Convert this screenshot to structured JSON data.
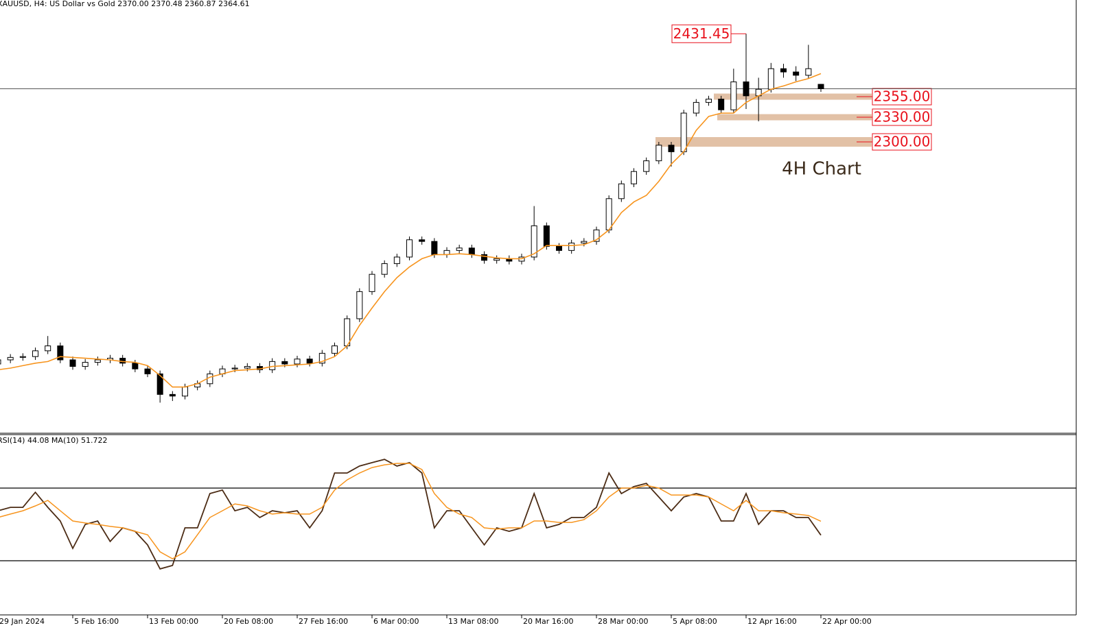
{
  "chart_data": [
    {
      "type": "candlestick",
      "title": "XAUUSD, H4:  US Dollar vs Gold  2370.00 2370.48 2360.87 2364.61",
      "annotation": "4H Chart",
      "categories": [
        "29 Jan 2024",
        null,
        null,
        null,
        null,
        null,
        "5 Feb 16:00",
        null,
        null,
        null,
        null,
        null,
        "13 Feb 00:00",
        null,
        null,
        null,
        null,
        null,
        "20 Feb 08:00",
        null,
        null,
        null,
        null,
        null,
        "27 Feb 16:00",
        null,
        null,
        null,
        null,
        null,
        "6 Mar 00:00",
        null,
        null,
        null,
        null,
        null,
        "13 Mar 08:00",
        null,
        null,
        null,
        null,
        null,
        "20 Mar 16:00",
        null,
        null,
        null,
        null,
        null,
        "28 Mar 00:00",
        null,
        null,
        null,
        null,
        null,
        "5 Apr 08:00",
        null,
        null,
        null,
        null,
        null,
        "12 Apr 16:00",
        null,
        null,
        null,
        null,
        null,
        "22 Apr 00:00"
      ],
      "open": [
        2030,
        2035,
        2038,
        2039,
        2046,
        2052,
        2035,
        2027,
        2032,
        2035,
        2037,
        2031,
        2024,
        2018,
        1993,
        1991,
        2002,
        2006,
        2018,
        2024,
        2025,
        2027,
        2023,
        2033,
        2030,
        2036,
        2031,
        2043,
        2052,
        2085,
        2118,
        2139,
        2152,
        2160,
        2181,
        2179,
        2163,
        2168,
        2171,
        2163,
        2156,
        2158,
        2155,
        2160,
        2198,
        2173,
        2168,
        2177,
        2179,
        2193,
        2231,
        2249,
        2264,
        2277,
        2296,
        2288,
        2335,
        2348,
        2352,
        2339,
        2373,
        2356,
        2364,
        2389,
        2385,
        2381,
        2370.0
      ],
      "high": [
        2039,
        2042,
        2043,
        2050,
        2064,
        2056,
        2039,
        2036,
        2039,
        2041,
        2041,
        2035,
        2028,
        2022,
        1997,
        2006,
        2010,
        2022,
        2028,
        2029,
        2031,
        2031,
        2037,
        2037,
        2040,
        2040,
        2047,
        2056,
        2089,
        2122,
        2143,
        2156,
        2164,
        2185,
        2185,
        2183,
        2172,
        2175,
        2175,
        2167,
        2162,
        2162,
        2164,
        2222,
        2202,
        2177,
        2181,
        2183,
        2197,
        2235,
        2253,
        2268,
        2281,
        2300,
        2300,
        2339,
        2352,
        2356,
        2356,
        2389,
        2431.45,
        2378,
        2396,
        2395,
        2392,
        2418,
        2370.48
      ],
      "low": [
        2026,
        2031,
        2034,
        2035,
        2042,
        2031,
        2023,
        2023,
        2028,
        2031,
        2027,
        2020,
        2014,
        1983,
        1985,
        1987,
        1998,
        2002,
        2014,
        2020,
        2021,
        2019,
        2019,
        2026,
        2026,
        2027,
        2027,
        2039,
        2048,
        2081,
        2114,
        2135,
        2148,
        2156,
        2175,
        2159,
        2159,
        2164,
        2159,
        2152,
        2152,
        2151,
        2151,
        2156,
        2169,
        2164,
        2164,
        2173,
        2175,
        2189,
        2227,
        2245,
        2260,
        2273,
        2270,
        2284,
        2331,
        2344,
        2335,
        2335,
        2340,
        2325,
        2360,
        2378,
        2374,
        2377,
        2360.87
      ],
      "close": [
        2035,
        2038,
        2039,
        2046,
        2052,
        2035,
        2027,
        2032,
        2035,
        2037,
        2031,
        2024,
        2018,
        1993,
        1991,
        2002,
        2006,
        2018,
        2024,
        2025,
        2027,
        2023,
        2033,
        2030,
        2036,
        2031,
        2043,
        2052,
        2085,
        2118,
        2139,
        2152,
        2160,
        2181,
        2179,
        2163,
        2168,
        2171,
        2163,
        2156,
        2158,
        2155,
        2160,
        2198,
        2173,
        2168,
        2177,
        2179,
        2193,
        2231,
        2249,
        2264,
        2277,
        2296,
        2288,
        2335,
        2348,
        2352,
        2339,
        2373,
        2356,
        2364,
        2389,
        2385,
        2381,
        2389,
        2364.61
      ],
      "up_color": "#ffffff",
      "down_color": "#000000",
      "ma": {
        "color": "#f7941d",
        "values": [
          2023,
          2025,
          2028,
          2031,
          2033,
          2039,
          2038,
          2037,
          2036,
          2035,
          2033,
          2032,
          2028,
          2016,
          2002,
          2002,
          2006,
          2014,
          2018,
          2022,
          2023,
          2024,
          2027,
          2028,
          2029,
          2030,
          2033,
          2039,
          2052,
          2077,
          2098,
          2118,
          2135,
          2148,
          2158,
          2163,
          2163,
          2164,
          2163,
          2161,
          2159,
          2158,
          2158,
          2164,
          2174,
          2174,
          2174,
          2175,
          2181,
          2193,
          2214,
          2227,
          2235,
          2252,
          2273,
          2288,
          2314,
          2331,
          2335,
          2335,
          2348,
          2356,
          2364,
          2368,
          2373,
          2377,
          2383
        ]
      },
      "ylim": [
        1945.8,
        2472.5
      ],
      "levels": [
        {
          "value": 2355,
          "label": "2355.00"
        },
        {
          "value": 2330,
          "label": "2330.00"
        },
        {
          "value": 2300,
          "label": "2300.00"
        }
      ],
      "level_color": "#e2c1a6",
      "label_color": "#e8101b"
    },
    {
      "type": "line",
      "title": "RSI(14) 44.08 MA(10) 51.722",
      "ylim": [
        0,
        100
      ],
      "levels": [
        70,
        30
      ],
      "series": [
        {
          "color": "#4b2b14",
          "values": [
            57.5,
            59.4,
            59.4,
            67.7,
            59.4,
            51.9,
            36.8,
            50,
            51.9,
            40.6,
            48.1,
            46.2,
            38.7,
            25.5,
            27.4,
            48.1,
            48.1,
            67,
            68.9,
            57.5,
            59.4,
            53.8,
            57.5,
            56.4,
            57.5,
            48.1,
            57.5,
            78.3,
            78.3,
            82.1,
            84,
            85.8,
            82.1,
            84,
            78.3,
            48.1,
            57.5,
            57.5,
            48.1,
            38.7,
            48.1,
            46.2,
            48.1,
            67,
            48.1,
            50,
            53.8,
            53.8,
            59.4,
            78.3,
            67,
            70.8,
            72.6,
            65.1,
            57.5,
            65.1,
            67,
            65.1,
            51.9,
            51.9,
            67,
            50,
            57.5,
            57.5,
            53.8,
            53.8,
            44.08
          ]
        },
        {
          "color": "#f7941d",
          "values": [
            53.8,
            55.7,
            57.5,
            60.2,
            63.2,
            57.5,
            51.9,
            50.8,
            50,
            48.9,
            48.1,
            46.2,
            44.3,
            34.9,
            31.1,
            34.9,
            44.3,
            53.8,
            57.5,
            61.3,
            60.2,
            57.5,
            55.7,
            56.4,
            55.7,
            55.7,
            59.4,
            68.9,
            74.5,
            78.3,
            81.3,
            82.8,
            83.6,
            83.6,
            80.2,
            67,
            59.4,
            55.7,
            53.8,
            48.1,
            47.4,
            48.1,
            48.1,
            51.9,
            51.9,
            51.1,
            51.1,
            52.6,
            57.5,
            65.1,
            70,
            70,
            71.5,
            70,
            66.2,
            66.2,
            66.2,
            65.1,
            61.3,
            57.5,
            63.2,
            57.5,
            57.5,
            56.4,
            55.7,
            54.9,
            51.722
          ]
        }
      ]
    }
  ]
}
